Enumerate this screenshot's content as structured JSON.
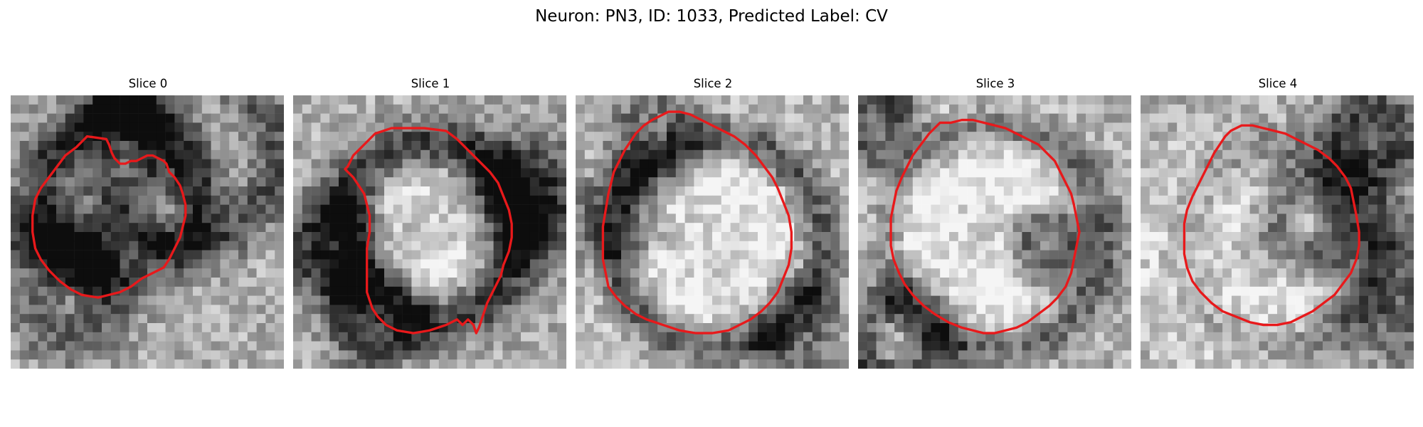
{
  "figure": {
    "title": "Neuron: PN3, ID: 1033, Predicted Label: CV"
  },
  "panels": [
    {
      "title": "Slice 0",
      "seed": 11,
      "dark": [
        [
          0.4,
          0.36,
          0.28,
          0.1,
          0.5
        ],
        [
          0.18,
          0.2,
          0.34,
          0.09,
          0.35
        ],
        [
          0.65,
          0.22,
          0.32,
          0.09,
          0.35
        ],
        [
          0.22,
          0.75,
          0.12,
          0.12,
          0.3
        ],
        [
          0.5,
          0.52,
          0.1,
          0.06,
          -0.25
        ]
      ]
    },
    {
      "title": "Slice 1",
      "seed": 23,
      "dark": [
        [
          0.5,
          0.5,
          0.32,
          0.1,
          0.55
        ],
        [
          0.15,
          0.55,
          0.1,
          0.12,
          0.4
        ],
        [
          0.85,
          0.38,
          0.1,
          0.14,
          0.45
        ],
        [
          0.3,
          0.82,
          0.12,
          0.08,
          0.35
        ],
        [
          0.48,
          0.5,
          0.18,
          0.18,
          -0.25
        ]
      ]
    },
    {
      "title": "Slice 2",
      "seed": 37,
      "dark": [
        [
          0.52,
          0.54,
          0.38,
          0.08,
          0.5
        ],
        [
          0.3,
          0.15,
          0.1,
          0.1,
          0.3
        ],
        [
          0.8,
          0.85,
          0.1,
          0.1,
          0.3
        ],
        [
          0.15,
          0.45,
          0.1,
          0.1,
          0.3
        ],
        [
          0.5,
          0.55,
          0.25,
          0.25,
          -0.25
        ]
      ]
    },
    {
      "title": "Slice 3",
      "seed": 41,
      "dark": [
        [
          0.7,
          0.55,
          0.08,
          0.08,
          0.55
        ],
        [
          0.05,
          0.1,
          0.1,
          0.1,
          0.45
        ],
        [
          0.15,
          0.9,
          0.15,
          0.1,
          0.45
        ],
        [
          0.5,
          0.52,
          0.4,
          0.08,
          0.4
        ],
        [
          0.4,
          0.5,
          0.25,
          0.25,
          -0.3
        ]
      ]
    },
    {
      "title": "Slice 4",
      "seed": 53,
      "dark": [
        [
          0.62,
          0.45,
          0.12,
          0.1,
          0.45
        ],
        [
          0.85,
          0.15,
          0.1,
          0.1,
          0.4
        ],
        [
          0.52,
          0.55,
          0.36,
          0.08,
          0.25
        ],
        [
          0.95,
          0.7,
          0.1,
          0.2,
          0.3
        ],
        [
          0.4,
          0.6,
          0.22,
          0.22,
          -0.25
        ]
      ]
    }
  ],
  "contours": [
    [
      [
        24,
        19
      ],
      [
        28,
        15
      ],
      [
        35,
        16
      ],
      [
        36,
        18
      ],
      [
        37,
        21
      ],
      [
        38,
        23
      ],
      [
        40,
        25
      ],
      [
        42,
        25
      ],
      [
        44,
        24
      ],
      [
        46,
        24
      ],
      [
        48,
        23
      ],
      [
        50,
        22
      ],
      [
        52,
        22
      ],
      [
        54,
        23
      ],
      [
        56,
        24
      ],
      [
        57,
        25
      ],
      [
        58,
        28
      ],
      [
        60,
        30
      ],
      [
        62,
        33
      ],
      [
        63,
        36
      ],
      [
        64,
        40
      ],
      [
        64,
        44
      ],
      [
        63,
        48
      ],
      [
        62,
        52
      ],
      [
        60,
        56
      ],
      [
        58,
        60
      ],
      [
        56,
        63
      ],
      [
        54,
        64
      ],
      [
        52,
        65
      ],
      [
        48,
        67
      ],
      [
        44,
        70
      ],
      [
        40,
        72
      ],
      [
        36,
        73
      ],
      [
        32,
        74
      ],
      [
        26,
        73
      ],
      [
        22,
        71
      ],
      [
        18,
        68
      ],
      [
        14,
        64
      ],
      [
        11,
        60
      ],
      [
        9,
        56
      ],
      [
        8,
        50
      ],
      [
        8,
        44
      ],
      [
        9,
        38
      ],
      [
        11,
        34
      ],
      [
        14,
        30
      ],
      [
        17,
        26
      ],
      [
        20,
        22
      ]
    ],
    [
      [
        20,
        26
      ],
      [
        22,
        22
      ],
      [
        26,
        18
      ],
      [
        30,
        14
      ],
      [
        36,
        12
      ],
      [
        42,
        12
      ],
      [
        48,
        12
      ],
      [
        56,
        13
      ],
      [
        60,
        16
      ],
      [
        64,
        20
      ],
      [
        68,
        24
      ],
      [
        72,
        28
      ],
      [
        75,
        32
      ],
      [
        77,
        37
      ],
      [
        79,
        42
      ],
      [
        80,
        47
      ],
      [
        80,
        52
      ],
      [
        79,
        57
      ],
      [
        77,
        62
      ],
      [
        76,
        66
      ],
      [
        74,
        70
      ],
      [
        72,
        74
      ],
      [
        71,
        76
      ],
      [
        70,
        79
      ],
      [
        69,
        82
      ],
      [
        68,
        85
      ],
      [
        67,
        87
      ],
      [
        66,
        84
      ],
      [
        64,
        82
      ],
      [
        62,
        84
      ],
      [
        60,
        82
      ],
      [
        56,
        84
      ],
      [
        50,
        86
      ],
      [
        44,
        87
      ],
      [
        38,
        86
      ],
      [
        34,
        84
      ],
      [
        31,
        81
      ],
      [
        29,
        78
      ],
      [
        28,
        75
      ],
      [
        27,
        72
      ],
      [
        27,
        68
      ],
      [
        27,
        62
      ],
      [
        27,
        56
      ],
      [
        28,
        50
      ],
      [
        28,
        44
      ],
      [
        27,
        40
      ],
      [
        26,
        36
      ],
      [
        24,
        33
      ],
      [
        22,
        30
      ],
      [
        20,
        28
      ],
      [
        19,
        27
      ]
    ],
    [
      [
        30,
        8
      ],
      [
        34,
        6
      ],
      [
        38,
        6
      ],
      [
        42,
        7
      ],
      [
        46,
        9
      ],
      [
        50,
        11
      ],
      [
        54,
        13
      ],
      [
        58,
        15
      ],
      [
        62,
        18
      ],
      [
        66,
        22
      ],
      [
        69,
        26
      ],
      [
        72,
        30
      ],
      [
        74,
        34
      ],
      [
        76,
        39
      ],
      [
        78,
        44
      ],
      [
        79,
        50
      ],
      [
        79,
        56
      ],
      [
        78,
        62
      ],
      [
        76,
        67
      ],
      [
        74,
        72
      ],
      [
        71,
        76
      ],
      [
        68,
        79
      ],
      [
        64,
        82
      ],
      [
        60,
        84
      ],
      [
        56,
        86
      ],
      [
        50,
        87
      ],
      [
        44,
        87
      ],
      [
        38,
        86
      ],
      [
        32,
        84
      ],
      [
        26,
        82
      ],
      [
        22,
        80
      ],
      [
        18,
        77
      ],
      [
        15,
        74
      ],
      [
        12,
        70
      ],
      [
        11,
        65
      ],
      [
        10,
        60
      ],
      [
        10,
        54
      ],
      [
        10,
        48
      ],
      [
        11,
        42
      ],
      [
        12,
        36
      ],
      [
        13,
        32
      ],
      [
        14,
        28
      ],
      [
        16,
        24
      ],
      [
        17,
        22
      ],
      [
        18,
        20
      ],
      [
        20,
        17
      ],
      [
        22,
        14
      ],
      [
        25,
        11
      ],
      [
        28,
        9
      ]
    ],
    [
      [
        30,
        10
      ],
      [
        34,
        10
      ],
      [
        38,
        9
      ],
      [
        42,
        9
      ],
      [
        46,
        10
      ],
      [
        50,
        11
      ],
      [
        54,
        12
      ],
      [
        58,
        14
      ],
      [
        62,
        16
      ],
      [
        66,
        18
      ],
      [
        69,
        21
      ],
      [
        72,
        24
      ],
      [
        74,
        28
      ],
      [
        76,
        32
      ],
      [
        78,
        36
      ],
      [
        79,
        40
      ],
      [
        80,
        45
      ],
      [
        81,
        50
      ],
      [
        80,
        55
      ],
      [
        79,
        60
      ],
      [
        78,
        65
      ],
      [
        76,
        70
      ],
      [
        73,
        74
      ],
      [
        70,
        77
      ],
      [
        66,
        80
      ],
      [
        62,
        83
      ],
      [
        58,
        85
      ],
      [
        54,
        86
      ],
      [
        50,
        87
      ],
      [
        46,
        87
      ],
      [
        42,
        86
      ],
      [
        38,
        85
      ],
      [
        33,
        83
      ],
      [
        28,
        80
      ],
      [
        24,
        77
      ],
      [
        20,
        73
      ],
      [
        17,
        69
      ],
      [
        15,
        65
      ],
      [
        13,
        60
      ],
      [
        12,
        55
      ],
      [
        12,
        50
      ],
      [
        12,
        45
      ],
      [
        13,
        40
      ],
      [
        14,
        35
      ],
      [
        16,
        30
      ],
      [
        18,
        26
      ],
      [
        20,
        22
      ],
      [
        23,
        18
      ],
      [
        26,
        14
      ]
    ],
    [
      [
        33,
        13
      ],
      [
        37,
        11
      ],
      [
        41,
        11
      ],
      [
        45,
        12
      ],
      [
        49,
        13
      ],
      [
        53,
        14
      ],
      [
        57,
        16
      ],
      [
        61,
        18
      ],
      [
        65,
        20
      ],
      [
        69,
        23
      ],
      [
        72,
        26
      ],
      [
        75,
        30
      ],
      [
        77,
        34
      ],
      [
        78,
        39
      ],
      [
        79,
        44
      ],
      [
        80,
        50
      ],
      [
        80,
        55
      ],
      [
        79,
        60
      ],
      [
        77,
        65
      ],
      [
        74,
        69
      ],
      [
        71,
        73
      ],
      [
        67,
        76
      ],
      [
        63,
        79
      ],
      [
        59,
        81
      ],
      [
        55,
        83
      ],
      [
        50,
        84
      ],
      [
        45,
        84
      ],
      [
        40,
        83
      ],
      [
        35,
        81
      ],
      [
        30,
        79
      ],
      [
        26,
        76
      ],
      [
        22,
        72
      ],
      [
        19,
        68
      ],
      [
        17,
        63
      ],
      [
        16,
        58
      ],
      [
        16,
        52
      ],
      [
        16,
        47
      ],
      [
        17,
        42
      ],
      [
        19,
        37
      ],
      [
        21,
        33
      ],
      [
        23,
        29
      ],
      [
        25,
        25
      ],
      [
        27,
        21
      ],
      [
        29,
        18
      ],
      [
        31,
        15
      ]
    ]
  ]
}
